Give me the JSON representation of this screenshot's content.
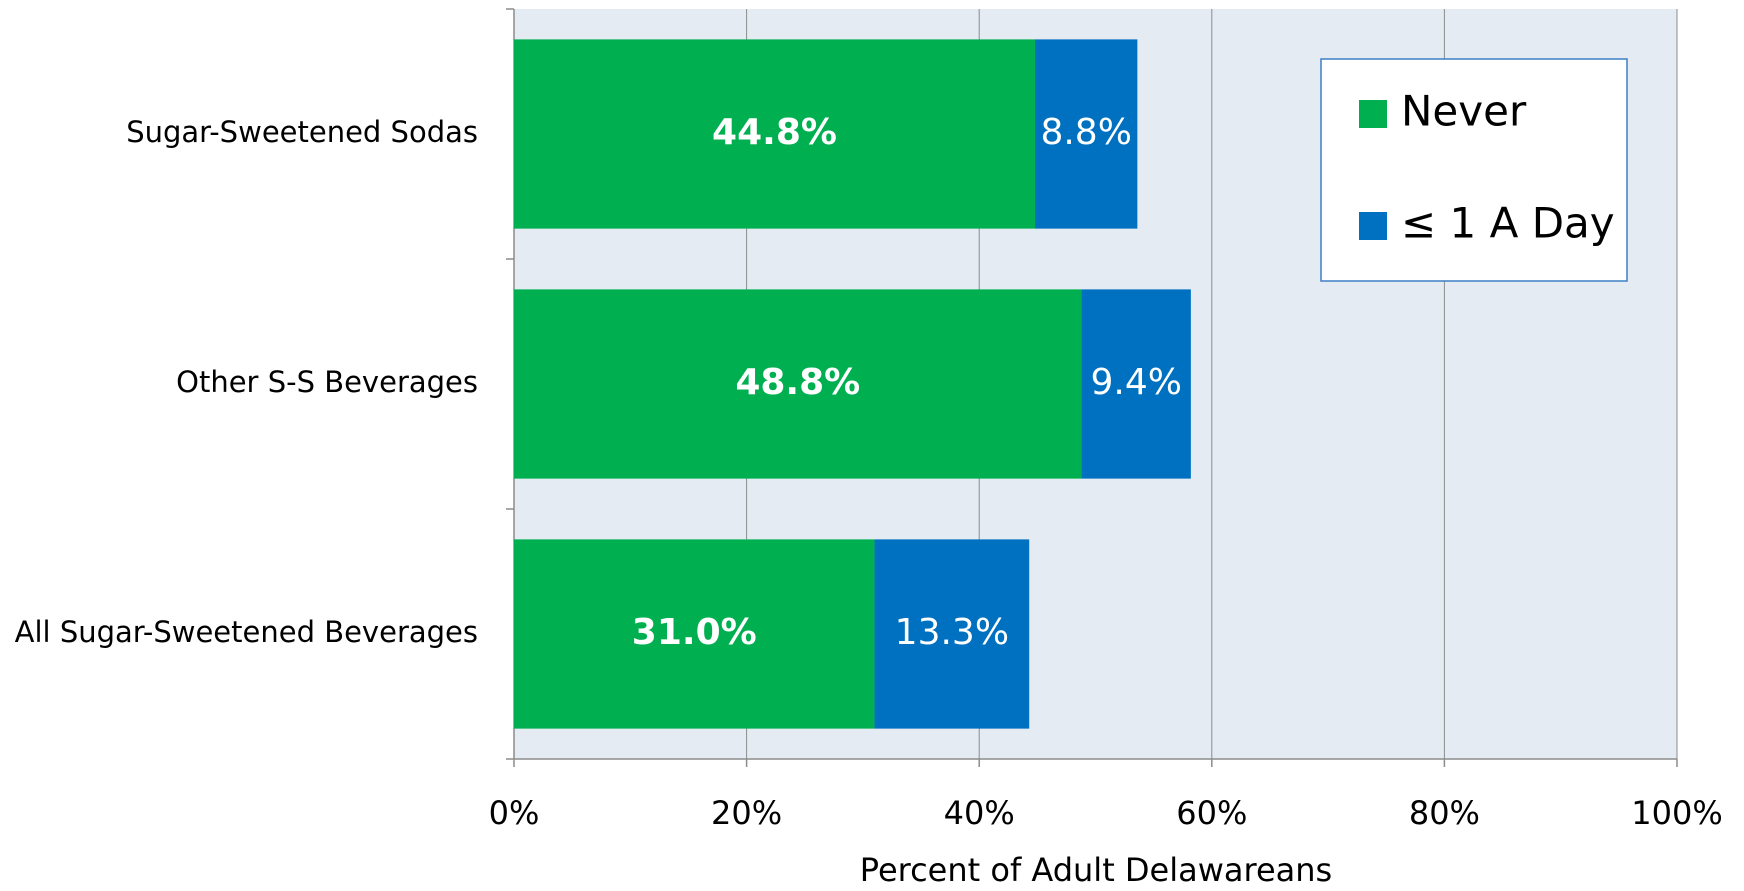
{
  "chart_data": {
    "type": "bar",
    "orientation": "horizontal",
    "stacked": true,
    "categories": [
      "Sugar-Sweetened Sodas",
      "Other S-S Beverages",
      "All Sugar-Sweetened Beverages"
    ],
    "series": [
      {
        "name": "Never",
        "color": "#00b050",
        "values": [
          44.8,
          48.8,
          31.0
        ],
        "value_labels": [
          "44.8%",
          "48.8%",
          "31.0%"
        ]
      },
      {
        "name": "≤ 1 A Day",
        "color": "#0070c0",
        "values": [
          8.8,
          9.4,
          13.3
        ],
        "value_labels": [
          "8.8%",
          "9.4%",
          "13.3%"
        ]
      }
    ],
    "xlabel": "Percent of Adult Delawareans",
    "xlim": [
      0,
      100
    ],
    "xticks": [
      {
        "value": 0,
        "label": "0%"
      },
      {
        "value": 20,
        "label": "20%"
      },
      {
        "value": 40,
        "label": "40%"
      },
      {
        "value": 60,
        "label": "60%"
      },
      {
        "value": 80,
        "label": "80%"
      },
      {
        "value": 100,
        "label": "100%"
      }
    ],
    "grid": true,
    "legend": "upper right"
  }
}
